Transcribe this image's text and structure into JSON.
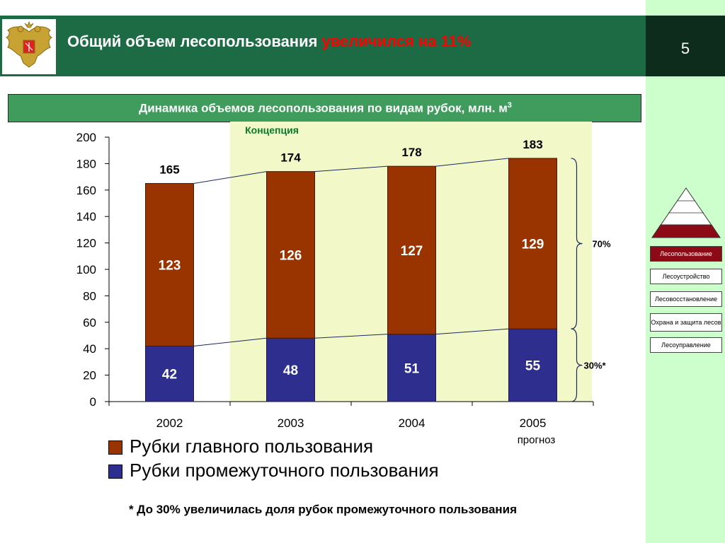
{
  "header": {
    "title_main": "Общий объем лесопользования ",
    "title_accent": "увеличился на 11%",
    "page_number": "5"
  },
  "subtitle": {
    "text": "Динамика объемов лесопользования по видам рубок, млн. м",
    "superscript": "3"
  },
  "chart_data": {
    "type": "bar",
    "stacked": true,
    "categories": [
      "2002",
      "2003",
      "2004",
      "2005"
    ],
    "category_sublabels": [
      "",
      "",
      "",
      "прогноз"
    ],
    "series": [
      {
        "name": "Рубки промежуточного пользования",
        "values": [
          42,
          48,
          51,
          55
        ],
        "color": "#2e2e8f"
      },
      {
        "name": "Рубки главного пользования",
        "values": [
          123,
          126,
          127,
          129
        ],
        "color": "#993300"
      }
    ],
    "totals": [
      165,
      174,
      178,
      183
    ],
    "ylim": [
      0,
      200
    ],
    "yticks": [
      0,
      20,
      40,
      60,
      80,
      100,
      120,
      140,
      160,
      180,
      200
    ],
    "highlight_label": "Концепция",
    "highlight_color": "#f2f8c8",
    "brace_labels": {
      "upper": "70%",
      "lower": "30%*"
    },
    "grid": false,
    "legend_position": "bottom"
  },
  "legend": {
    "items": [
      {
        "label": "Рубки главного пользования",
        "color": "#993300"
      },
      {
        "label": "Рубки промежуточного пользования",
        "color": "#2e2e8f"
      }
    ]
  },
  "footnote": "* До 30% увеличилась доля рубок промежуточного пользования",
  "nav": {
    "items": [
      {
        "label": "Лесопользование",
        "active": true
      },
      {
        "label": "Лесоустройство",
        "active": false
      },
      {
        "label": "Лесовосстановление",
        "active": false
      },
      {
        "label": "Охрана и защита лесов",
        "active": false
      },
      {
        "label": "Лесоуправление",
        "active": false
      }
    ]
  },
  "colors": {
    "header_bg": "#1d6b45",
    "accent_red": "#ff0000",
    "subtitle_bg": "#3f9c5c",
    "side_bg": "#ccffcc",
    "nav_active": "#8b0a16"
  }
}
